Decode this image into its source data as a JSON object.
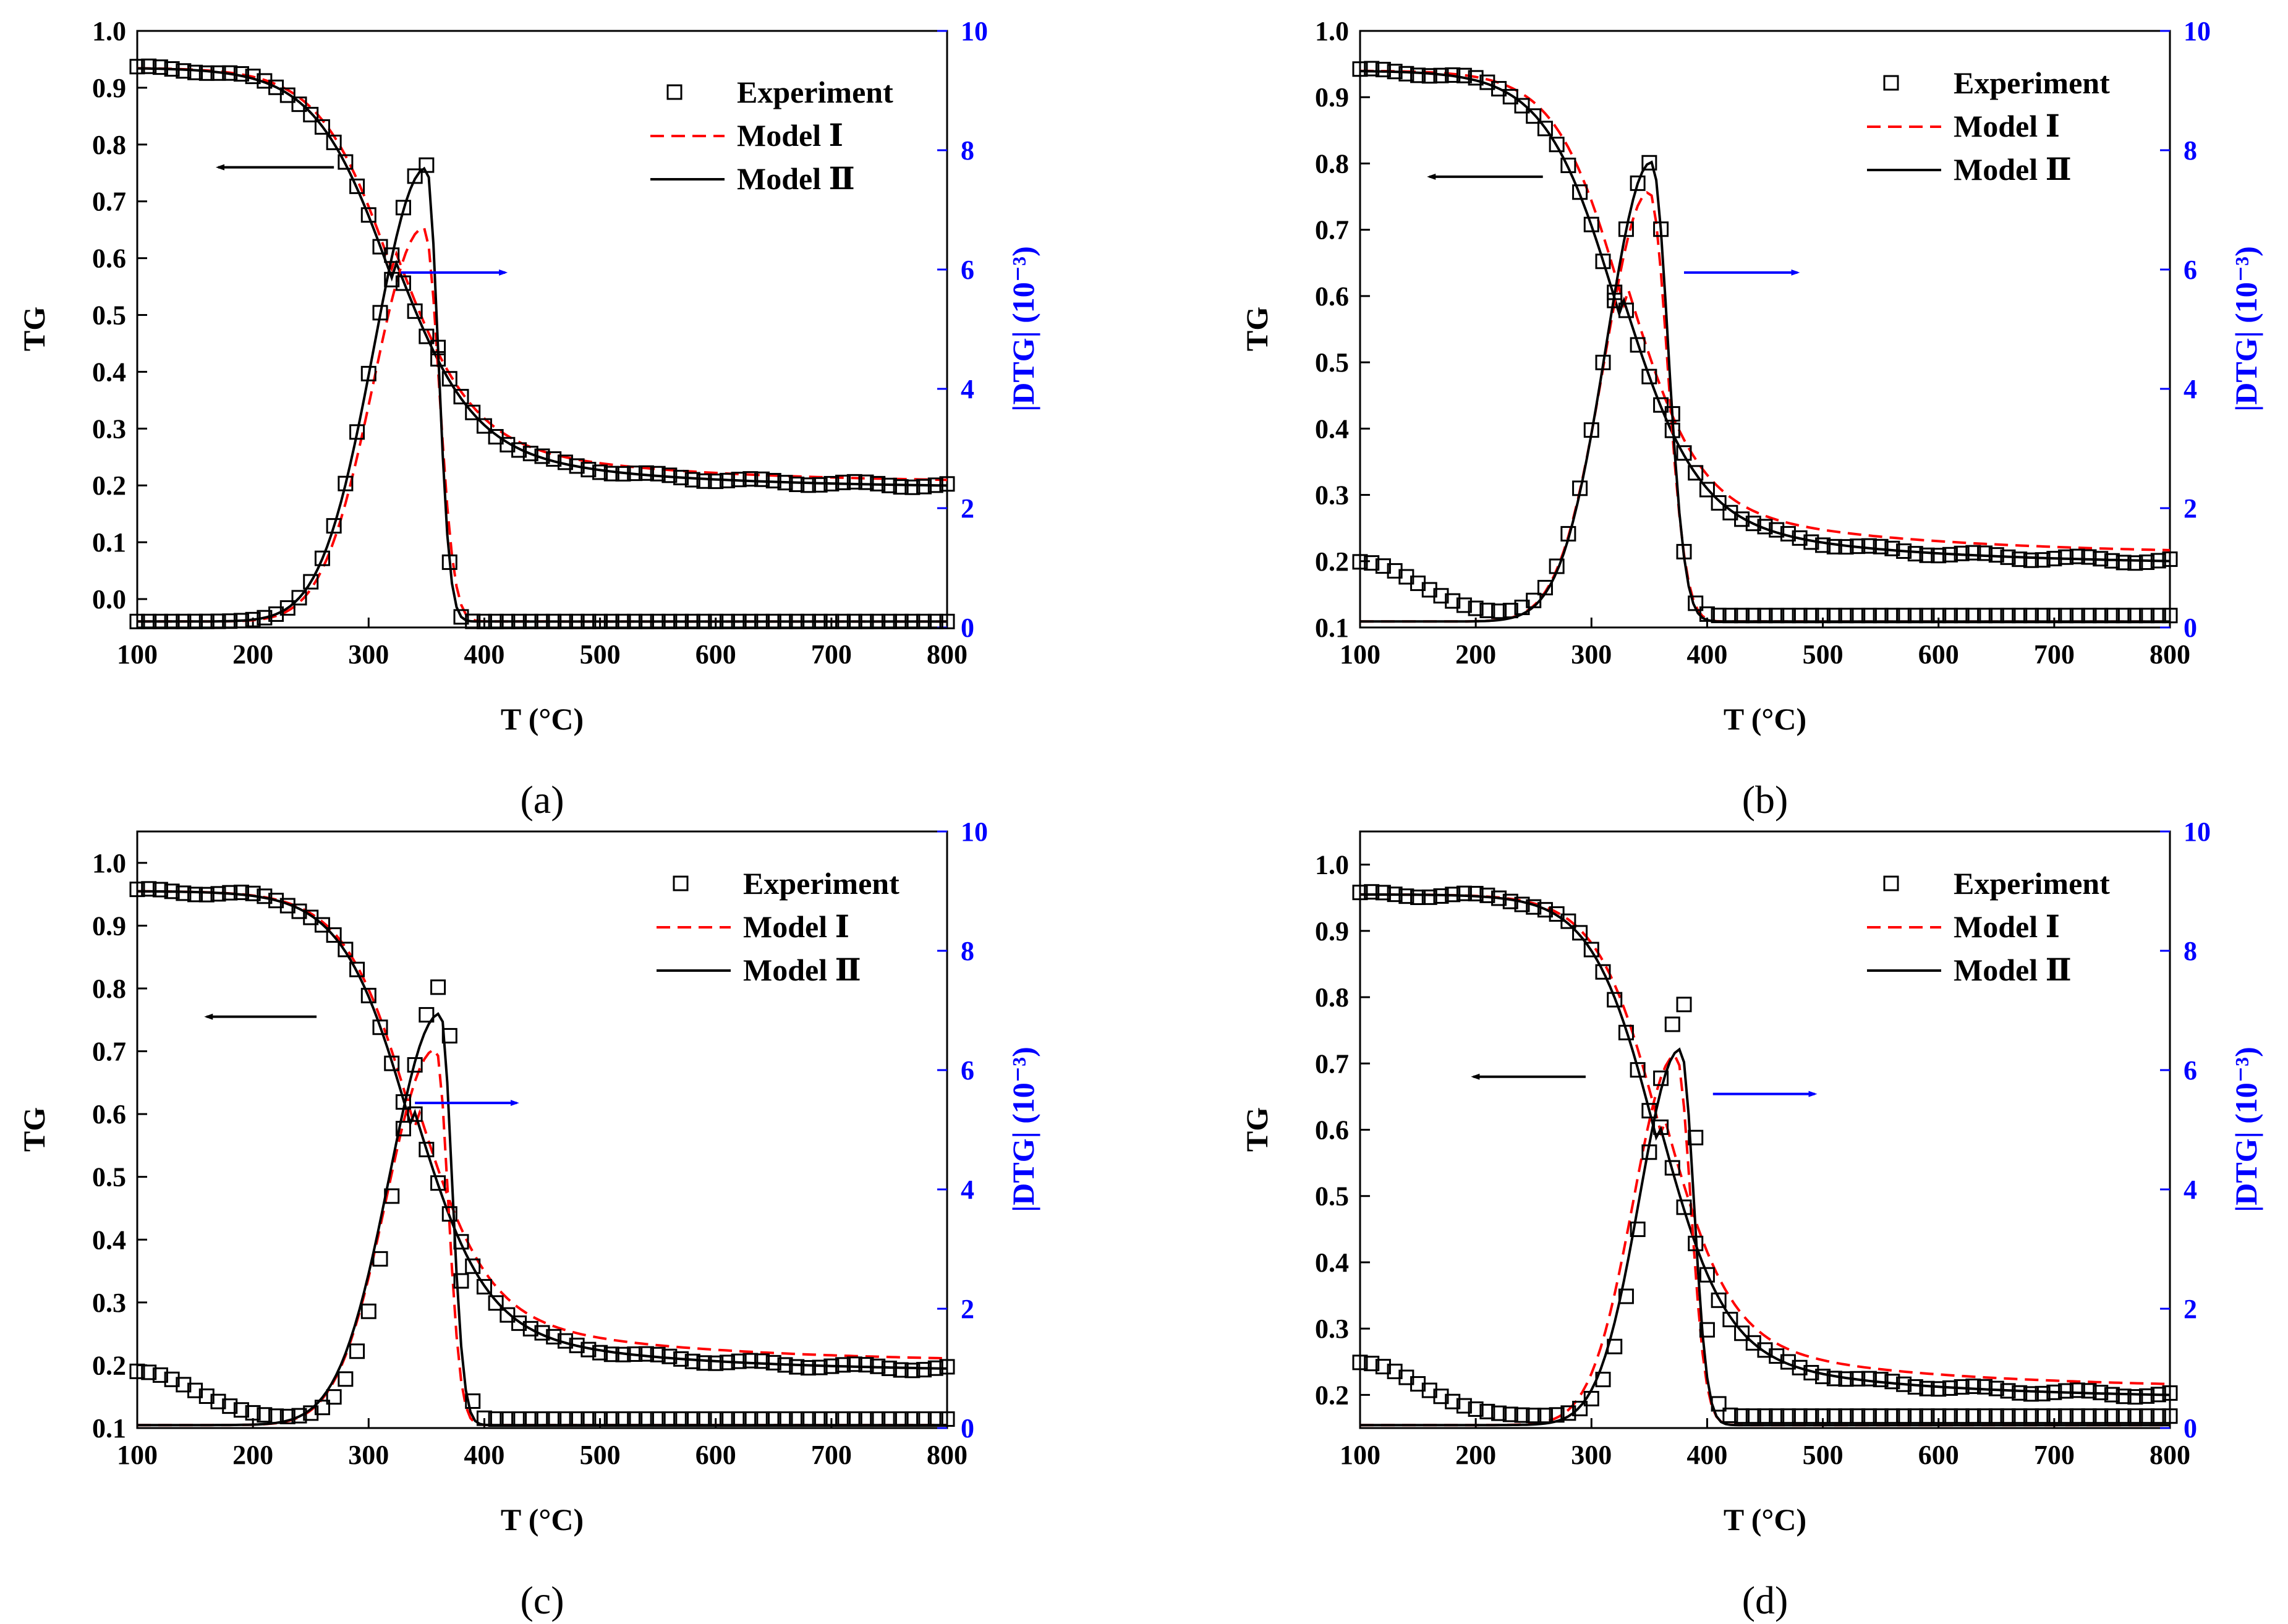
{
  "figure": {
    "legend_labels": [
      "Experiment",
      "Model Ⅰ",
      "Model Ⅱ"
    ],
    "x_axis_title": "T (°C)",
    "y_left_title": "TG",
    "y_right_title": "|DTG| (10⁻³)",
    "colors": {
      "experiment": "#000000",
      "model1": "#ff0000",
      "model2": "#000000",
      "right_axis": "#0000ff",
      "arrow_left": "#000000",
      "arrow_right": "#0000ff"
    }
  },
  "chart_data": [
    {
      "type": "line",
      "panel_label": "(a)",
      "xlabel": "T (°C)",
      "ylabel": "TG",
      "y2label": "|DTG| (10⁻³)",
      "xlim": [
        100,
        800
      ],
      "ylim": [
        -0.05,
        1.0
      ],
      "y2lim": [
        0,
        10
      ],
      "xticks": [
        100,
        200,
        300,
        400,
        500,
        600,
        700,
        800
      ],
      "yticks": [
        0.0,
        0.1,
        0.2,
        0.3,
        0.4,
        0.5,
        0.6,
        0.7,
        0.8,
        0.9,
        1.0
      ],
      "ytick_labels": [
        "0.0",
        "0.1",
        "0.2",
        "0.3",
        "0.4",
        "0.5",
        "0.6",
        "0.7",
        "0.8",
        "0.9",
        "1.0"
      ],
      "y2ticks": [
        0,
        2,
        4,
        6,
        8,
        10
      ],
      "legend": [
        "Experiment",
        "Model Ⅰ",
        "Model Ⅱ"
      ],
      "tg_params": {
        "t0": 100,
        "y_start": 0.935,
        "y_end": 0.196,
        "tm": 320,
        "w": 33,
        "tail_amp": 0.155,
        "tail_tau": 150
      },
      "tg_model1_params": {
        "tm": 322,
        "w": 32,
        "y_end": 0.205,
        "tail_amp": 0.16,
        "tail_tau": 160
      },
      "dtg_exp": {
        "base": 0.1,
        "peak": 350,
        "amp": 7.65,
        "sl": 64,
        "sr": 14
      },
      "dtg_m1": {
        "base": 0.1,
        "peak": 348,
        "amp": 6.6,
        "sl": 62,
        "sr": 18
      },
      "dtg_m2": {
        "base": 0.1,
        "peak": 350,
        "amp": 7.6,
        "sl": 64,
        "sr": 14
      },
      "arrow_left_x": [
        270,
        170
      ],
      "arrow_left_y": 0.76,
      "arrow_right_x": [
        328,
        418
      ],
      "arrow_right_y2": 5.95
    },
    {
      "type": "line",
      "panel_label": "(b)",
      "xlabel": "T (°C)",
      "ylabel": "TG",
      "y2label": "|DTG| (10⁻³)",
      "xlim": [
        100,
        800
      ],
      "ylim": [
        0.1,
        1.0
      ],
      "y2lim": [
        0,
        10
      ],
      "xticks": [
        100,
        200,
        300,
        400,
        500,
        600,
        700,
        800
      ],
      "yticks": [
        0.1,
        0.2,
        0.3,
        0.4,
        0.5,
        0.6,
        0.7,
        0.8,
        0.9,
        1.0
      ],
      "ytick_labels": [
        "0.1",
        "0.2",
        "0.3",
        "0.4",
        "0.5",
        "0.6",
        "0.7",
        "0.8",
        "0.9",
        "1.0"
      ],
      "y2ticks": [
        0,
        2,
        4,
        6,
        8,
        10
      ],
      "legend": [
        "Experiment",
        "Model Ⅰ",
        "Model Ⅱ"
      ],
      "tg_params": {
        "t0": 100,
        "y_start": 0.94,
        "y_end": 0.195,
        "tm": 325,
        "w": 32,
        "tail_amp": 0.14,
        "tail_tau": 170
      },
      "tg_model1_params": {
        "tm": 330,
        "w": 30,
        "y_end": 0.21,
        "tail_amp": 0.15,
        "tail_tau": 180
      },
      "dtg_exp": {
        "base": 0.2,
        "peak": 352,
        "amp": 7.6,
        "sl": 55,
        "sr": 20,
        "early_bump": 0.9
      },
      "dtg_m1": {
        "base": 0.1,
        "peak": 350,
        "amp": 7.2,
        "sl": 55,
        "sr": 22
      },
      "dtg_m2": {
        "base": 0.1,
        "peak": 352,
        "amp": 7.7,
        "sl": 55,
        "sr": 20
      },
      "arrow_left_x": [
        258,
        160
      ],
      "arrow_left_y": 0.78,
      "arrow_right_x": [
        380,
        478
      ],
      "arrow_right_y2": 5.95
    },
    {
      "type": "line",
      "panel_label": "(c)",
      "xlabel": "T (°C)",
      "ylabel": "TG",
      "y2label": "|DTG| (10⁻³)",
      "xlim": [
        100,
        800
      ],
      "ylim": [
        0.1,
        1.05
      ],
      "y2lim": [
        0,
        10
      ],
      "xticks": [
        100,
        200,
        300,
        400,
        500,
        600,
        700,
        800
      ],
      "yticks": [
        0.1,
        0.2,
        0.3,
        0.4,
        0.5,
        0.6,
        0.7,
        0.8,
        0.9,
        1.0
      ],
      "ytick_labels": [
        "0.1",
        "0.2",
        "0.3",
        "0.4",
        "0.5",
        "0.6",
        "0.7",
        "0.8",
        "0.9",
        "1.0"
      ],
      "y2ticks": [
        0,
        2,
        4,
        6,
        8,
        10
      ],
      "legend": [
        "Experiment",
        "Model Ⅰ",
        "Model Ⅱ"
      ],
      "tg_params": {
        "t0": 100,
        "y_start": 0.955,
        "y_end": 0.19,
        "tm": 338,
        "w": 30,
        "tail_amp": 0.14,
        "tail_tau": 160
      },
      "tg_model1_params": {
        "tm": 340,
        "w": 30,
        "y_end": 0.205,
        "tail_amp": 0.15,
        "tail_tau": 170
      },
      "dtg_exp": {
        "base": 0.15,
        "peak": 365,
        "amp": 7.3,
        "sl": 55,
        "sr": 14,
        "early_bump": 0.8
      },
      "dtg_m1": {
        "base": 0.05,
        "peak": 358,
        "amp": 6.3,
        "sl": 60,
        "sr": 15
      },
      "dtg_m2": {
        "base": 0.05,
        "peak": 362,
        "amp": 6.9,
        "sl": 62,
        "sr": 14
      },
      "arrow_left_x": [
        255,
        160
      ],
      "arrow_left_y": 0.755,
      "arrow_right_x": [
        340,
        428
      ],
      "arrow_right_y2": 5.45
    },
    {
      "type": "line",
      "panel_label": "(d)",
      "xlabel": "T (°C)",
      "ylabel": "TG",
      "y2label": "|DTG| (10⁻³)",
      "xlim": [
        100,
        800
      ],
      "ylim": [
        0.15,
        1.05
      ],
      "y2lim": [
        0,
        10
      ],
      "xticks": [
        100,
        200,
        300,
        400,
        500,
        600,
        700,
        800
      ],
      "yticks": [
        0.2,
        0.3,
        0.4,
        0.5,
        0.6,
        0.7,
        0.8,
        0.9,
        1.0
      ],
      "ytick_labels": [
        "0.2",
        "0.3",
        "0.4",
        "0.5",
        "0.6",
        "0.7",
        "0.8",
        "0.9",
        "1.0"
      ],
      "y2ticks": [
        0,
        2,
        4,
        6,
        8,
        10
      ],
      "legend": [
        "Experiment",
        "Model Ⅰ",
        "Model Ⅱ"
      ],
      "tg_params": {
        "t0": 100,
        "y_start": 0.955,
        "y_end": 0.195,
        "tm": 358,
        "w": 28,
        "tail_amp": 0.13,
        "tail_tau": 160
      },
      "tg_model1_params": {
        "tm": 362,
        "w": 28,
        "y_end": 0.21,
        "tail_amp": 0.14,
        "tail_tau": 170
      },
      "dtg_exp": {
        "base": 0.2,
        "peak": 380,
        "amp": 6.9,
        "sl": 45,
        "sr": 16,
        "early_bump": 0.9
      },
      "dtg_m1": {
        "base": 0.05,
        "peak": 373,
        "amp": 6.2,
        "sl": 52,
        "sr": 18
      },
      "dtg_m2": {
        "base": 0.05,
        "peak": 377,
        "amp": 6.3,
        "sl": 50,
        "sr": 16
      },
      "arrow_left_x": [
        295,
        198
      ],
      "arrow_left_y": 0.68,
      "arrow_right_x": [
        405,
        493
      ],
      "arrow_right_y2": 5.6
    }
  ]
}
